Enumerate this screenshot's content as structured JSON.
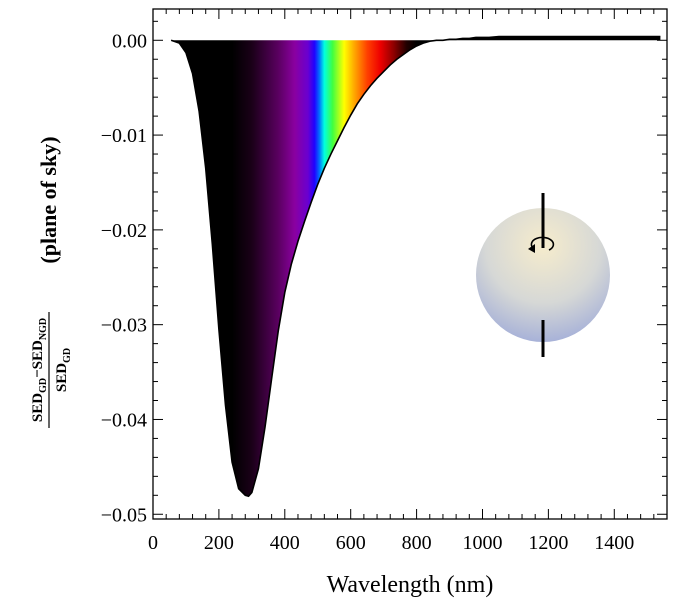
{
  "chart_data": {
    "type": "area",
    "title": "",
    "xlabel": "Wavelength (nm)",
    "ylabel": {
      "numerator": "SED",
      "numerator_sub": "GD",
      "minus": "−",
      "subtrahend": "SED",
      "subtrahend_sub": "NGD",
      "denominator": "SED",
      "denominator_sub": "GD",
      "suffix": "(plane of sky)"
    },
    "xlim": [
      0,
      1560
    ],
    "ylim": [
      -0.0505,
      0.0033
    ],
    "xticks": [
      {
        "value": 0,
        "label": "0"
      },
      {
        "value": 200,
        "label": "200"
      },
      {
        "value": 400,
        "label": "400"
      },
      {
        "value": 600,
        "label": "600"
      },
      {
        "value": 800,
        "label": "800"
      },
      {
        "value": 1000,
        "label": "1000"
      },
      {
        "value": 1200,
        "label": "1200"
      },
      {
        "value": 1400,
        "label": "1400"
      }
    ],
    "yticks": [
      {
        "value": 0.0,
        "label": "0.00"
      },
      {
        "value": -0.01,
        "label": "−0.01"
      },
      {
        "value": -0.02,
        "label": "−0.02"
      },
      {
        "value": -0.03,
        "label": "−0.03"
      },
      {
        "value": -0.04,
        "label": "−0.04"
      },
      {
        "value": -0.05,
        "label": "−0.05"
      }
    ],
    "series": [
      {
        "x": [
          55,
          80,
          100,
          120,
          140,
          160,
          180,
          200,
          220,
          240,
          260,
          280,
          290,
          300,
          320,
          340,
          360,
          380,
          400,
          420,
          440,
          460,
          480,
          500,
          520,
          540,
          560,
          580,
          600,
          620,
          640,
          660,
          680,
          700,
          720,
          740,
          760,
          780,
          800,
          820,
          840,
          860,
          880,
          900,
          920,
          940,
          960,
          980,
          1000,
          1020,
          1050,
          1100,
          1200,
          1300,
          1400,
          1500,
          1540
        ],
        "y": [
          0.0,
          -0.0003,
          -0.0013,
          -0.0035,
          -0.0075,
          -0.0135,
          -0.0215,
          -0.0305,
          -0.0385,
          -0.0445,
          -0.0473,
          -0.048,
          -0.0481,
          -0.0477,
          -0.0452,
          -0.0408,
          -0.0357,
          -0.0307,
          -0.0266,
          -0.0236,
          -0.0212,
          -0.0191,
          -0.0171,
          -0.0152,
          -0.0135,
          -0.012,
          -0.0106,
          -0.0092,
          -0.0079,
          -0.0067,
          -0.0057,
          -0.0048,
          -0.004,
          -0.0033,
          -0.0026,
          -0.002,
          -0.0015,
          -0.001,
          -0.0006,
          -0.0003,
          -0.0001,
          0.0,
          0.0,
          0.0001,
          0.0001,
          0.0002,
          0.0002,
          0.0003,
          0.0003,
          0.0003,
          0.0004,
          0.0004,
          0.0004,
          0.0004,
          0.0004,
          0.0004,
          0.0004
        ]
      }
    ],
    "fill_color_by_wavelength": true,
    "fill_color_stops": [
      {
        "nm": 0,
        "color": "#000000"
      },
      {
        "nm": 240,
        "color": "#000000"
      },
      {
        "nm": 300,
        "color": "#1a0018"
      },
      {
        "nm": 380,
        "color": "#5a0060"
      },
      {
        "nm": 430,
        "color": "#8a00a0"
      },
      {
        "nm": 470,
        "color": "#6a00d0"
      },
      {
        "nm": 490,
        "color": "#2000ff"
      },
      {
        "nm": 505,
        "color": "#0070ff"
      },
      {
        "nm": 520,
        "color": "#00ffe0"
      },
      {
        "nm": 545,
        "color": "#40ff40"
      },
      {
        "nm": 580,
        "color": "#ffff00"
      },
      {
        "nm": 610,
        "color": "#ffaa00"
      },
      {
        "nm": 650,
        "color": "#ff4000"
      },
      {
        "nm": 690,
        "color": "#ee0000"
      },
      {
        "nm": 730,
        "color": "#900000"
      },
      {
        "nm": 770,
        "color": "#200000"
      },
      {
        "nm": 800,
        "color": "#000000"
      },
      {
        "nm": 1600,
        "color": "#000000"
      }
    ],
    "inset": {
      "type": "rotating-sphere-icon",
      "colors": {
        "top": "#f3e9c8",
        "bottom": "#a9b4dc",
        "axis": "#000000"
      }
    }
  }
}
